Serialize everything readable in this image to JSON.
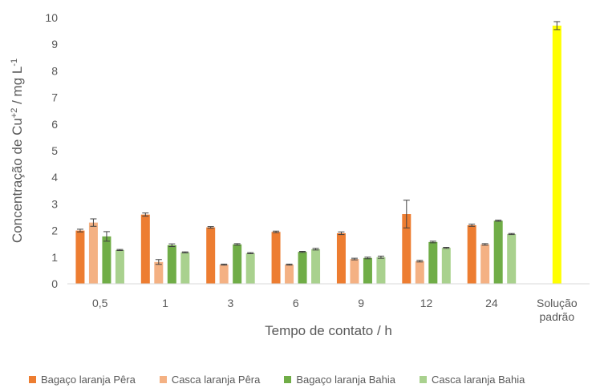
{
  "chart_data": {
    "type": "bar",
    "xlabel": "Tempo de contato / h",
    "ylabel_parts": [
      "Concentração de Cu",
      "+2",
      " / mg L",
      "-1"
    ],
    "ylim": [
      0,
      10
    ],
    "yticks": [
      "0",
      "1",
      "2",
      "3",
      "4",
      "5",
      "6",
      "7",
      "8",
      "9",
      "10"
    ],
    "categories": [
      [
        "0,5"
      ],
      [
        "1"
      ],
      [
        "3"
      ],
      [
        "6"
      ],
      [
        "9"
      ],
      [
        "12"
      ],
      [
        "24"
      ],
      [
        "Solução",
        "padrão"
      ]
    ],
    "series": [
      {
        "name": "Bagaço laranja Pêra",
        "color": "#ED7D31",
        "values": [
          2.0,
          2.6,
          2.12,
          1.95,
          1.9,
          2.62,
          2.2,
          null
        ],
        "errors": [
          0.05,
          0.06,
          0.03,
          0.03,
          0.05,
          0.52,
          0.04,
          null
        ]
      },
      {
        "name": "Casca laranja Pêra",
        "color": "#F4B183",
        "values": [
          2.3,
          0.82,
          0.72,
          0.72,
          0.93,
          0.85,
          1.48,
          null
        ],
        "errors": [
          0.14,
          0.09,
          0.02,
          0.02,
          0.03,
          0.03,
          0.03,
          null
        ]
      },
      {
        "name": "Bagaço laranja Bahia",
        "color": "#70AD47",
        "values": [
          1.78,
          1.45,
          1.48,
          1.2,
          0.97,
          1.57,
          2.37,
          null
        ],
        "errors": [
          0.18,
          0.05,
          0.03,
          0.02,
          0.03,
          0.03,
          0.02,
          null
        ]
      },
      {
        "name": "Casca laranja Bahia",
        "color": "#A9D18E",
        "values": [
          1.27,
          1.18,
          1.15,
          1.3,
          1.0,
          1.35,
          1.87,
          null
        ],
        "errors": [
          0.02,
          0.02,
          0.02,
          0.03,
          0.04,
          0.02,
          0.02,
          null
        ]
      },
      {
        "name": "",
        "color": "#FFFF00",
        "values": [
          null,
          null,
          null,
          null,
          null,
          null,
          null,
          9.7
        ],
        "errors": [
          null,
          null,
          null,
          null,
          null,
          null,
          null,
          0.15
        ]
      }
    ],
    "grid": false,
    "legend": "bottom"
  }
}
